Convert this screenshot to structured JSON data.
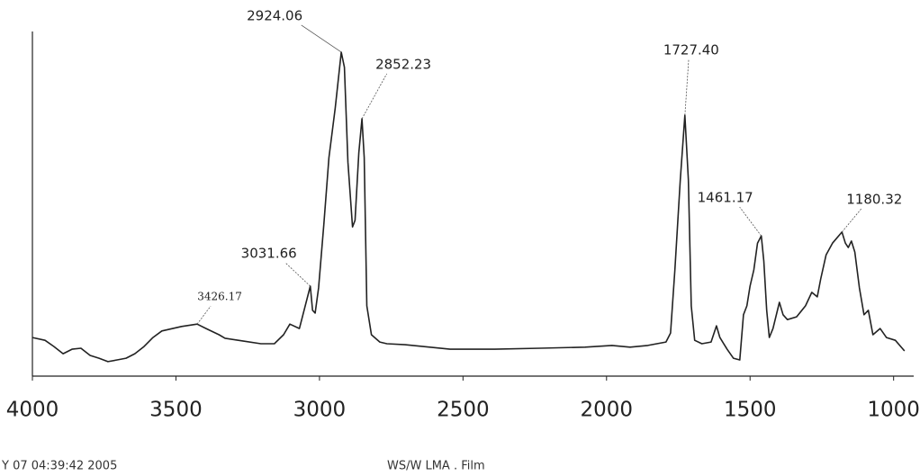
{
  "chart_data": {
    "type": "line",
    "x": [
      4000,
      3956,
      3925,
      3893,
      3862,
      3831,
      3799,
      3768,
      3737,
      3705,
      3674,
      3643,
      3611,
      3580,
      3549,
      3480,
      3426,
      3395,
      3350,
      3329,
      3267,
      3204,
      3157,
      3125,
      3103,
      3070,
      3032,
      3024,
      3015,
      3003,
      2985,
      2967,
      2945,
      2924,
      2913,
      2901,
      2885,
      2876,
      2863,
      2852,
      2844,
      2835,
      2819,
      2790,
      2765,
      2702,
      2545,
      2389,
      2232,
      2075,
      1981,
      1918,
      1856,
      1793,
      1777,
      1762,
      1743,
      1727,
      1715,
      1705,
      1693,
      1668,
      1636,
      1617,
      1605,
      1580,
      1558,
      1536,
      1523,
      1511,
      1500,
      1487,
      1474,
      1461,
      1452,
      1442,
      1433,
      1420,
      1398,
      1385,
      1370,
      1338,
      1307,
      1285,
      1266,
      1254,
      1235,
      1213,
      1180,
      1168,
      1158,
      1147,
      1135,
      1119,
      1103,
      1088,
      1072,
      1047,
      1025,
      994,
      962
    ],
    "values": [
      11.2,
      10.4,
      8.6,
      6.5,
      7.8,
      8.1,
      6.0,
      5.2,
      4.2,
      4.7,
      5.2,
      6.5,
      8.6,
      11.2,
      13.1,
      14.4,
      15.1,
      13.8,
      12.0,
      11.0,
      10.2,
      9.4,
      9.4,
      12.0,
      15.1,
      13.8,
      26.1,
      19.1,
      18.3,
      25.6,
      43.9,
      63.4,
      77.8,
      94.0,
      89.6,
      62.1,
      43.3,
      45.2,
      64.8,
      74.7,
      63.4,
      20.4,
      12.0,
      9.9,
      9.4,
      9.1,
      7.8,
      7.8,
      8.1,
      8.4,
      8.9,
      8.4,
      8.9,
      9.9,
      12.5,
      30.8,
      56.9,
      75.7,
      56.9,
      20.4,
      10.4,
      9.4,
      9.9,
      14.6,
      11.2,
      7.8,
      5.2,
      4.7,
      17.8,
      20.4,
      26.1,
      30.8,
      38.6,
      40.7,
      33.4,
      19.1,
      11.2,
      13.8,
      21.4,
      17.8,
      16.4,
      17.2,
      20.4,
      24.3,
      23.0,
      28.2,
      35.2,
      38.6,
      41.8,
      38.6,
      37.3,
      39.2,
      36.0,
      25.6,
      17.8,
      19.1,
      12.0,
      13.8,
      11.2,
      10.4,
      7.3
    ],
    "color": "#222222",
    "xlim": [
      4000,
      930
    ],
    "ylim": [
      0,
      100
    ],
    "xticks": [
      4000,
      3500,
      3000,
      2500,
      2000,
      1500,
      1000
    ],
    "annotations": [
      {
        "label": "2924.06",
        "x": 2924,
        "y": 94.0
      },
      {
        "label": "2852.23",
        "x": 2852,
        "y": 74.7
      },
      {
        "label": "3031.66",
        "x": 3032,
        "y": 26.1
      },
      {
        "label": "3426.17",
        "x": 3426,
        "y": 15.1
      },
      {
        "label": "1727.40",
        "x": 1727,
        "y": 75.7
      },
      {
        "label": "1461.17",
        "x": 1461,
        "y": 40.7
      },
      {
        "label": "1180.32",
        "x": 1180,
        "y": 41.8
      }
    ],
    "footer_left": "Y 07 04:39:42 2005",
    "footer_right": "WS/W LMA . Film"
  }
}
